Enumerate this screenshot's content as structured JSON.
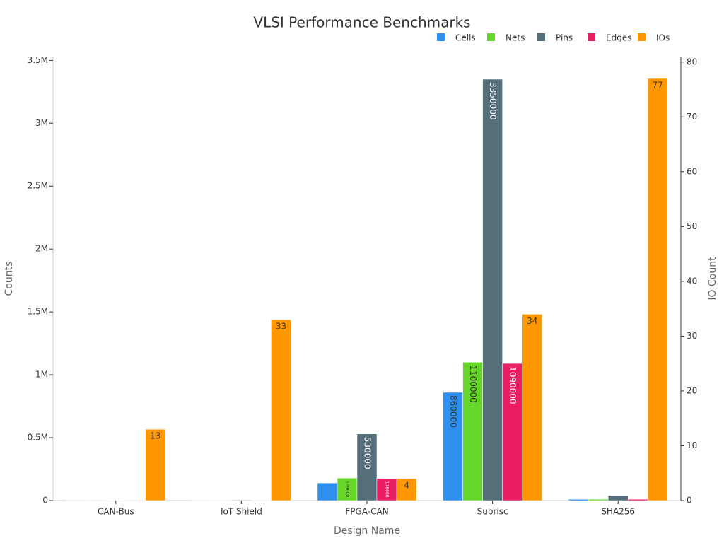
{
  "chart_data": {
    "type": "bar",
    "title": "VLSI Performance Benchmarks",
    "x_label": "Design Name",
    "y_label": "Counts",
    "y2_label": "IO Count",
    "categories": [
      "CAN-Bus",
      "IoT Shield",
      "FPGA-CAN",
      "Subrisc",
      "SHA256"
    ],
    "series": [
      {
        "name": "Cells",
        "color": "#2e8fef",
        "values": [
          600,
          1000,
          140000,
          860000,
          10000
        ]
      },
      {
        "name": "Nets",
        "color": "#66d62a",
        "values": [
          600,
          1000,
          179000,
          1100000,
          10000
        ]
      },
      {
        "name": "Pins",
        "color": "#546e7a",
        "values": [
          2000,
          4000,
          530000,
          3350000,
          40000
        ]
      },
      {
        "name": "Edges",
        "color": "#e91e63",
        "values": [
          600,
          1000,
          176000,
          1090000,
          10000
        ]
      },
      {
        "name": "IOs",
        "color": "#ff9800",
        "axis": "y2",
        "values": [
          13,
          33,
          4,
          34,
          77
        ]
      }
    ],
    "ylim": [
      0,
      3530000
    ],
    "yticks": [
      0,
      {
        "value": 500000,
        "label": "0.5M"
      },
      {
        "value": 1000000,
        "label": "1M"
      },
      {
        "value": 1500000,
        "label": "1.5M"
      },
      {
        "value": 2000000,
        "label": "2M"
      },
      {
        "value": 2500000,
        "label": "2.5M"
      },
      {
        "value": 3000000,
        "label": "3M"
      },
      {
        "value": 3500000,
        "label": "3.5M"
      }
    ],
    "y2lim": [
      0,
      81
    ],
    "y2ticks": [
      0,
      10,
      20,
      30,
      40,
      50,
      60,
      70,
      80
    ],
    "legend": "top-right",
    "grid": false
  }
}
